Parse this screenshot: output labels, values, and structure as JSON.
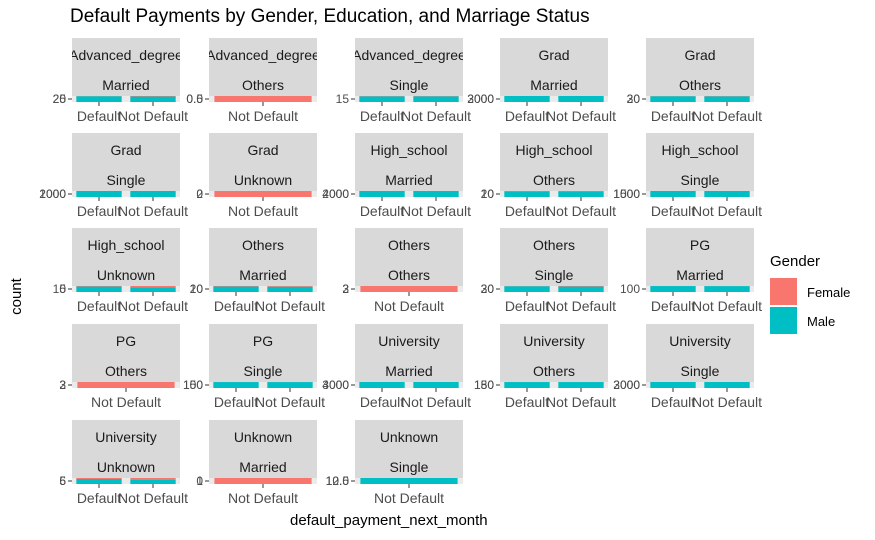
{
  "chart_data": {
    "type": "bar",
    "title": "Default Payments by Gender, Education, and Marriage Status",
    "xlabel": "default_payment_next_month",
    "ylabel": "count",
    "legend": {
      "title": "Gender",
      "position": "right",
      "entries": [
        {
          "name": "Female",
          "color": "#F8766D"
        },
        {
          "name": "Male",
          "color": "#00BFC4"
        }
      ]
    },
    "facet_rows": [
      "education",
      "marriage"
    ],
    "scales": "free_y",
    "panels": [
      {
        "education": "Advanced_degree",
        "marriage": "Married",
        "categories": [
          "Default",
          "Not Default"
        ],
        "female": [
          1,
          2
        ],
        "male": [
          20,
          21
        ],
        "yticks": [
          "20",
          "25"
        ]
      },
      {
        "education": "Advanced_degree",
        "marriage": "Others",
        "categories": [
          "Not Default"
        ],
        "female": [
          1
        ],
        "male": [
          0
        ],
        "yticks": [
          "0.0",
          "0.5"
        ]
      },
      {
        "education": "Advanced_degree",
        "marriage": "Single",
        "categories": [
          "Default",
          "Not Default"
        ],
        "female": [
          1,
          1
        ],
        "male": [
          15,
          15
        ],
        "yticks": [
          "15"
        ]
      },
      {
        "education": "Grad",
        "marriage": "Married",
        "categories": [
          "Default",
          "Not Default"
        ],
        "female": [
          1,
          2
        ],
        "male": [
          3000,
          3000
        ],
        "yticks": [
          "2000",
          "3000"
        ]
      },
      {
        "education": "Grad",
        "marriage": "Others",
        "categories": [
          "Default",
          "Not Default"
        ],
        "female": [
          1,
          2
        ],
        "male": [
          20,
          30
        ],
        "yticks": [
          "20",
          "30"
        ]
      },
      {
        "education": "Grad",
        "marriage": "Single",
        "categories": [
          "Default",
          "Not Default"
        ],
        "female": [
          1,
          1
        ],
        "male": [
          2000,
          2000
        ],
        "yticks": [
          "1000",
          "2000"
        ]
      },
      {
        "education": "Grad",
        "marriage": "Unknown",
        "categories": [
          "Not Default"
        ],
        "female": [
          1
        ],
        "male": [
          0
        ],
        "yticks": [
          "0",
          "2"
        ]
      },
      {
        "education": "High_school",
        "marriage": "Married",
        "categories": [
          "Default",
          "Not Default"
        ],
        "female": [
          1,
          2
        ],
        "male": [
          2000,
          2000
        ],
        "yticks": [
          "2000",
          "4000"
        ]
      },
      {
        "education": "High_school",
        "marriage": "Others",
        "categories": [
          "Default",
          "Not Default"
        ],
        "female": [
          1,
          2
        ],
        "male": [
          20,
          20
        ],
        "yticks": [
          "10",
          "20"
        ]
      },
      {
        "education": "High_school",
        "marriage": "Single",
        "categories": [
          "Default",
          "Not Default"
        ],
        "female": [
          1,
          1
        ],
        "male": [
          1500,
          1500
        ],
        "yticks": [
          "1000",
          "1500"
        ]
      },
      {
        "education": "High_school",
        "marriage": "Unknown",
        "categories": [
          "Default",
          "Not Default"
        ],
        "female": [
          1,
          3
        ],
        "male": [
          10,
          10
        ],
        "yticks": [
          "5",
          "10"
        ]
      },
      {
        "education": "Others",
        "marriage": "Married",
        "categories": [
          "Default",
          "Not Default"
        ],
        "female": [
          1,
          3
        ],
        "male": [
          10,
          20
        ],
        "yticks": [
          "10",
          "20"
        ]
      },
      {
        "education": "Others",
        "marriage": "Others",
        "categories": [
          "Not Default"
        ],
        "female": [
          1
        ],
        "male": [
          0
        ],
        "yticks": [
          "2",
          "3"
        ]
      },
      {
        "education": "Others",
        "marriage": "Single",
        "categories": [
          "Default",
          "Not Default"
        ],
        "female": [
          1,
          3
        ],
        "male": [
          20,
          30
        ],
        "yticks": [
          "20",
          "30"
        ]
      },
      {
        "education": "PG",
        "marriage": "Married",
        "categories": [
          "Default",
          "Not Default"
        ],
        "female": [
          1,
          2
        ],
        "male": [
          100,
          100
        ],
        "yticks": [
          "100"
        ]
      },
      {
        "education": "PG",
        "marriage": "Others",
        "categories": [
          "Not Default"
        ],
        "female": [
          1
        ],
        "male": [
          0
        ],
        "yticks": [
          "2",
          "3"
        ]
      },
      {
        "education": "PG",
        "marriage": "Single",
        "categories": [
          "Default",
          "Not Default"
        ],
        "female": [
          1,
          2
        ],
        "male": [
          100,
          150
        ],
        "yticks": [
          "100",
          "150"
        ]
      },
      {
        "education": "University",
        "marriage": "Married",
        "categories": [
          "Default",
          "Not Default"
        ],
        "female": [
          1,
          3
        ],
        "male": [
          3000,
          4000
        ],
        "yticks": [
          "3000",
          "4000"
        ]
      },
      {
        "education": "University",
        "marriage": "Others",
        "categories": [
          "Default",
          "Not Default"
        ],
        "female": [
          1,
          1
        ],
        "male": [
          150,
          180
        ],
        "yticks": [
          "150",
          "180"
        ]
      },
      {
        "education": "University",
        "marriage": "Single",
        "categories": [
          "Default",
          "Not Default"
        ],
        "female": [
          1,
          1
        ],
        "male": [
          2000,
          3000
        ],
        "yticks": [
          "2000",
          "3000"
        ]
      },
      {
        "education": "University",
        "marriage": "Unknown",
        "categories": [
          "Default",
          "Not Default"
        ],
        "female": [
          1,
          3
        ],
        "male": [
          5,
          6
        ],
        "yticks": [
          "5",
          "6"
        ]
      },
      {
        "education": "Unknown",
        "marriage": "Married",
        "categories": [
          "Not Default"
        ],
        "female": [
          1
        ],
        "male": [
          0
        ],
        "yticks": [
          "0",
          "1"
        ]
      },
      {
        "education": "Unknown",
        "marriage": "Single",
        "categories": [
          "Not Default"
        ],
        "female": [
          0
        ],
        "male": [
          1
        ],
        "yticks": [
          "10.0",
          "12.5"
        ]
      }
    ]
  }
}
